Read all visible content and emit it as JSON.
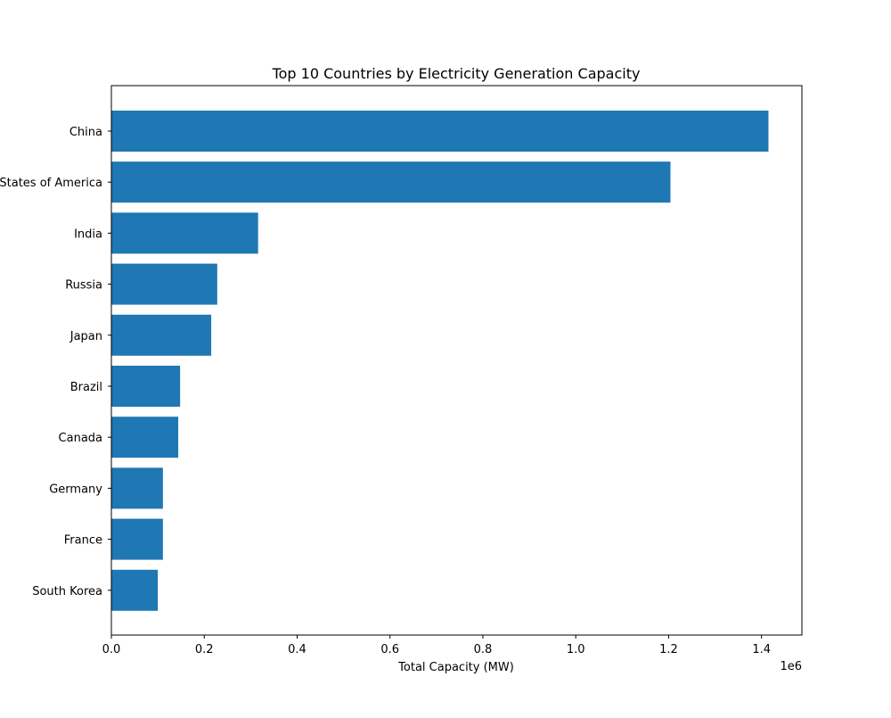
{
  "chart_data": {
    "type": "bar",
    "orientation": "horizontal",
    "title": "Top 10 Countries by Electricity Generation Capacity",
    "xlabel": "Total Capacity (MW)",
    "ylabel": "",
    "x_offset_label": "1e6",
    "xlim": [
      0,
      1487000
    ],
    "x_ticks": [
      0,
      200000,
      400000,
      600000,
      800000,
      1000000,
      1200000,
      1400000
    ],
    "x_tick_labels": [
      "0.0",
      "0.2",
      "0.4",
      "0.6",
      "0.8",
      "1.0",
      "1.2",
      "1.4"
    ],
    "categories": [
      "China",
      "United States of America",
      "India",
      "Russia",
      "Japan",
      "Brazil",
      "Canada",
      "Germany",
      "France",
      "South Korea"
    ],
    "values": [
      1415000,
      1204000,
      316000,
      228000,
      215000,
      148000,
      144000,
      111000,
      111000,
      100000
    ],
    "bar_color": "#1f77b4",
    "grid": false,
    "legend": "none"
  }
}
